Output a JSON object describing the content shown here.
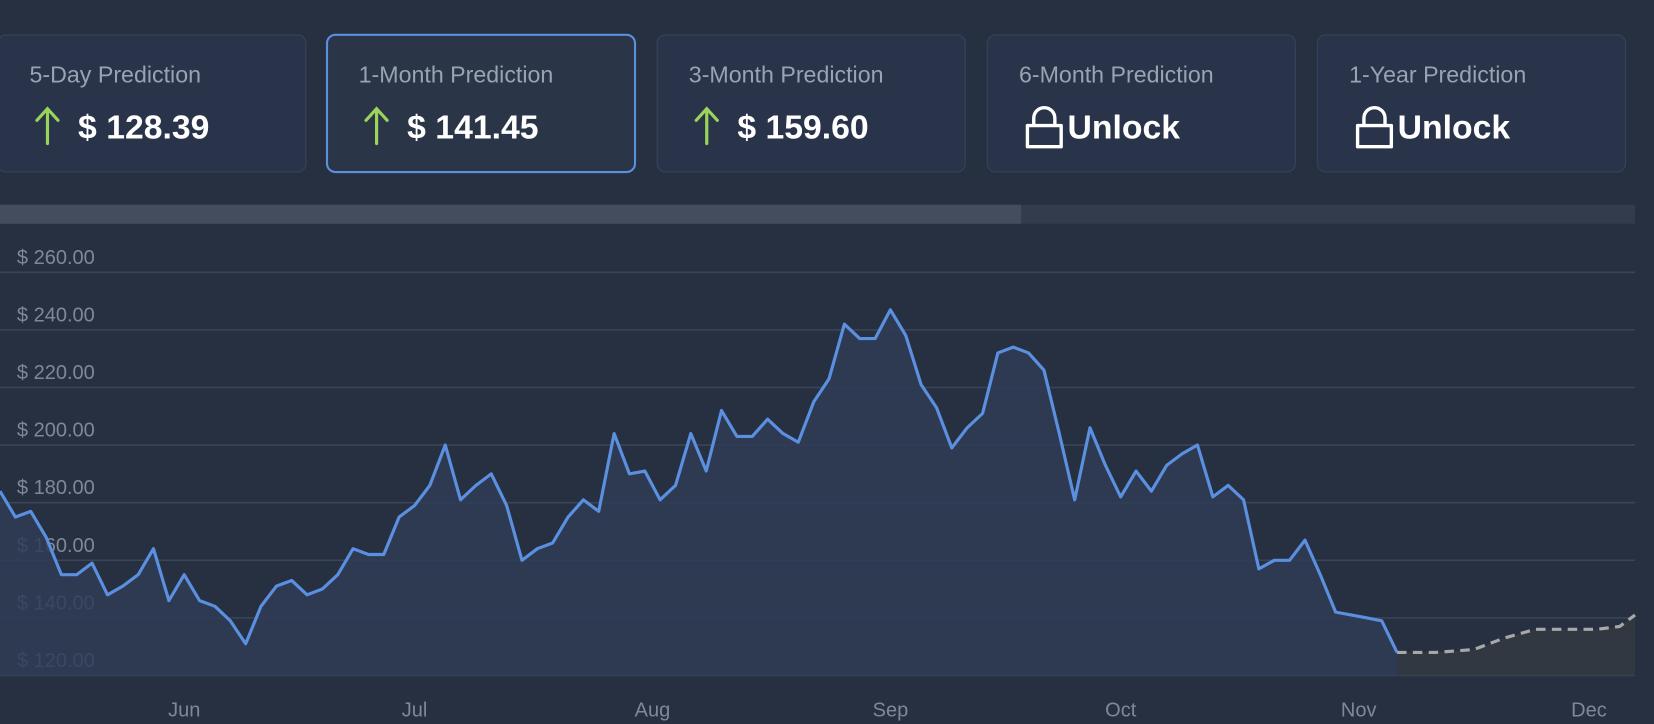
{
  "cards": [
    {
      "label": "5-Day Prediction",
      "value": "$ 128.39",
      "icon": "up"
    },
    {
      "label": "1-Month Prediction",
      "value": "$ 141.45",
      "icon": "up",
      "selected": true
    },
    {
      "label": "3-Month Prediction",
      "value": "$ 159.60",
      "icon": "up"
    },
    {
      "label": "6-Month Prediction",
      "value": "Unlock",
      "icon": "lock"
    },
    {
      "label": "1-Year Prediction",
      "value": "Unlock",
      "icon": "lock"
    }
  ],
  "chart_data": {
    "type": "line",
    "xlim": [
      -24,
      189
    ],
    "ylim": [
      120,
      260
    ],
    "xticks": [
      {
        "value": 0,
        "label": "Jun"
      },
      {
        "value": 30,
        "label": "Jul"
      },
      {
        "value": 61,
        "label": "Aug"
      },
      {
        "value": 92,
        "label": "Sep"
      },
      {
        "value": 122,
        "label": "Oct"
      },
      {
        "value": 153,
        "label": "Nov"
      },
      {
        "value": 183,
        "label": "Dec"
      }
    ],
    "yticks": [
      {
        "value": 120,
        "label": "$ 120.00"
      },
      {
        "value": 140,
        "label": "$ 140.00"
      },
      {
        "value": 160,
        "label": "$ 160.00"
      },
      {
        "value": 180,
        "label": "$ 180.00"
      },
      {
        "value": 200,
        "label": "$ 200.00"
      },
      {
        "value": 220,
        "label": "$ 220.00"
      },
      {
        "value": 240,
        "label": "$ 240.00"
      },
      {
        "value": 260,
        "label": "$ 260.00"
      }
    ],
    "grid": true,
    "series": [
      {
        "color": "#5b8fdf",
        "fill": "#2f3c56",
        "dashed": false,
        "x": [
          -24,
          -22,
          -20,
          -18,
          -16,
          -14,
          -12,
          -10,
          -8,
          -6,
          -4,
          -2,
          0,
          2,
          4,
          6,
          8,
          10,
          12,
          14,
          16,
          18,
          20,
          22,
          24,
          26,
          28,
          30,
          32,
          34,
          36,
          38,
          40,
          42,
          44,
          46,
          48,
          50,
          52,
          54,
          56,
          58,
          60,
          62,
          64,
          66,
          68,
          70,
          72,
          74,
          76,
          78,
          80,
          82,
          84,
          86,
          88,
          90,
          92,
          94,
          96,
          98,
          100,
          102,
          104,
          106,
          108,
          110,
          112,
          114,
          116,
          118,
          120,
          122,
          124,
          126,
          128,
          130,
          132,
          134,
          136,
          138,
          140,
          142,
          144,
          146,
          148,
          150,
          152,
          154,
          156,
          158
        ],
        "values": [
          184,
          175,
          177,
          168,
          155,
          155,
          159,
          148,
          151,
          155,
          164,
          146,
          155,
          146,
          144,
          139,
          131,
          144,
          151,
          153,
          148,
          150,
          155,
          164,
          162,
          162,
          175,
          179,
          186,
          200,
          181,
          186,
          190,
          179,
          160,
          164,
          166,
          175,
          181,
          177,
          204,
          190,
          191,
          181,
          186,
          204,
          191,
          212,
          203,
          203,
          209,
          204,
          201,
          215,
          223,
          242,
          237,
          237,
          247,
          238,
          221,
          213,
          199,
          206,
          211,
          232,
          234,
          232,
          226,
          204,
          181,
          206,
          193,
          182,
          191,
          184,
          193,
          197,
          200,
          182,
          186,
          181,
          157,
          160,
          160,
          167,
          155,
          142,
          141,
          140,
          139,
          128
        ]
      },
      {
        "color": "#a8a8a8",
        "fill": "#343943",
        "dashed": true,
        "x": [
          158,
          163,
          168,
          172,
          176,
          180,
          184,
          187,
          189
        ],
        "values": [
          128,
          128,
          129,
          133,
          136,
          136,
          136,
          137,
          141
        ]
      }
    ]
  }
}
